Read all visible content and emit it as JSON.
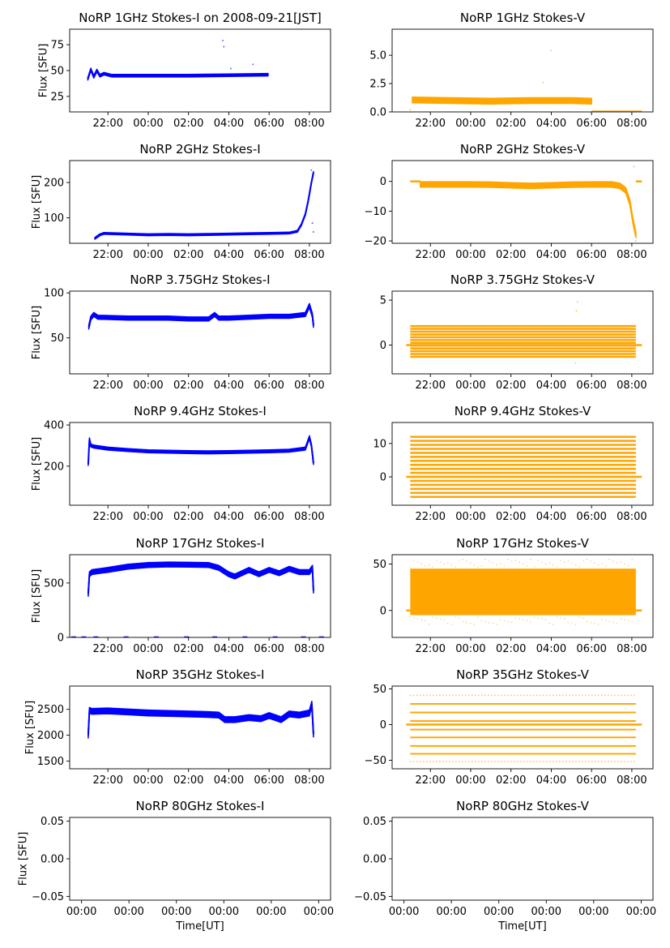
{
  "figure": {
    "xlabel": "Time[UT]"
  },
  "chart_data": [
    {
      "id": "1ghz-i",
      "type": "line",
      "title": "NoRP 1GHz Stokes-I on 2008-09-21[JST]",
      "ylabel": "Flux [SFU]",
      "xlim": [
        -3.9,
        9.05
      ],
      "ylim": [
        10,
        90
      ],
      "xticks": [
        -2,
        0,
        2,
        4,
        6,
        8
      ],
      "xtick_labels": [
        "22:00",
        "00:00",
        "02:00",
        "04:00",
        "06:00",
        "08:00"
      ],
      "yticks": [
        25,
        50,
        75
      ],
      "ytick_labels": [
        "25",
        "50",
        "75"
      ],
      "color": "#0000ff",
      "band_half_width": 1.2,
      "series": [
        {
          "x": [
            -3.0,
            -2.85,
            -2.7,
            -2.55,
            -2.4,
            -2.2,
            -1.8,
            0,
            2,
            4,
            5.95
          ],
          "y": [
            42,
            51,
            44,
            50,
            45,
            47,
            45,
            45,
            45,
            45.5,
            46
          ]
        }
      ],
      "outliers": [
        {
          "x": 3.7,
          "y": 79
        },
        {
          "x": 3.75,
          "y": 73
        },
        {
          "x": 4.1,
          "y": 52
        },
        {
          "x": 5.2,
          "y": 56
        }
      ]
    },
    {
      "id": "1ghz-v",
      "type": "line",
      "title": "NoRP 1GHz Stokes-V",
      "ylabel": "",
      "xlim": [
        -3.9,
        9.05
      ],
      "ylim": [
        0,
        7.3
      ],
      "xticks": [
        -2,
        0,
        2,
        4,
        6,
        8
      ],
      "xtick_labels": [
        "22:00",
        "00:00",
        "02:00",
        "04:00",
        "06:00",
        "08:00"
      ],
      "yticks": [
        0,
        2.5,
        5
      ],
      "ytick_labels": [
        "0.0",
        "2.5",
        "5.0"
      ],
      "color": "#ffa500",
      "band_half_width": 0.25,
      "series": [
        {
          "x": [
            -2.9,
            -1,
            1,
            3,
            5,
            6.0
          ],
          "y": [
            1.05,
            1.0,
            0.95,
            1.0,
            1.0,
            0.95
          ]
        }
      ],
      "flat": {
        "x": [
          6.0,
          8.5
        ],
        "y": 0.03
      },
      "outliers": [
        {
          "x": -3.0,
          "y": 0.2
        },
        {
          "x": 4.0,
          "y": 5.4
        },
        {
          "x": 3.6,
          "y": 2.6
        }
      ]
    },
    {
      "id": "2ghz-i",
      "type": "line",
      "title": "NoRP 2GHz Stokes-I",
      "ylabel": "Flux [SFU]",
      "xlim": [
        -3.9,
        9.05
      ],
      "ylim": [
        28,
        262
      ],
      "xticks": [
        -2,
        0,
        2,
        4,
        6,
        8
      ],
      "xtick_labels": [
        "22:00",
        "00:00",
        "02:00",
        "04:00",
        "06:00",
        "08:00"
      ],
      "yticks": [
        100,
        200
      ],
      "ytick_labels": [
        "100",
        "200"
      ],
      "color": "#0000ff",
      "band_half_width": 2.5,
      "series": [
        {
          "x": [
            -2.65,
            -2.4,
            -2.2,
            -1,
            0,
            1,
            2,
            3,
            4,
            5,
            6,
            7,
            7.4,
            7.6,
            7.8,
            7.95,
            8.1,
            8.2
          ],
          "y": [
            42,
            52,
            56,
            54,
            52,
            53,
            52,
            53,
            54,
            55,
            56,
            57,
            62,
            80,
            110,
            150,
            200,
            228
          ]
        }
      ],
      "outliers": [
        {
          "x": 8.15,
          "y": 85
        },
        {
          "x": 8.2,
          "y": 60
        },
        {
          "x": 8.1,
          "y": 235
        }
      ]
    },
    {
      "id": "2ghz-v",
      "type": "line",
      "title": "NoRP 2GHz Stokes-V",
      "ylabel": "",
      "xlim": [
        -3.9,
        9.05
      ],
      "ylim": [
        -20.8,
        7
      ],
      "xticks": [
        -2,
        0,
        2,
        4,
        6,
        8
      ],
      "xtick_labels": [
        "22:00",
        "00:00",
        "02:00",
        "04:00",
        "06:00",
        "08:00"
      ],
      "yticks": [
        -20,
        -10,
        0
      ],
      "ytick_labels": [
        "−20",
        "−10",
        "0"
      ],
      "color": "#ffa500",
      "band_half_width": 0.9,
      "series": [
        {
          "x": [
            -2.5,
            -1,
            0,
            1,
            2,
            3,
            4,
            5,
            6,
            7,
            7.4,
            7.7,
            7.9,
            8.05,
            8.2
          ],
          "y": [
            -1,
            -1,
            -1,
            -1.1,
            -1.3,
            -1.5,
            -1.3,
            -1.1,
            -1,
            -1,
            -1.5,
            -3,
            -7,
            -13,
            -18
          ]
        }
      ],
      "flat": {
        "x": [
          -3.0,
          -2.5
        ],
        "y": 0
      },
      "flat2": {
        "x": [
          8.2,
          8.5
        ],
        "y": 0
      },
      "outliers": [
        {
          "x": 8.1,
          "y": 5
        },
        {
          "x": 8.2,
          "y": -20
        }
      ]
    },
    {
      "id": "375ghz-i",
      "type": "line",
      "title": "NoRP 3.75GHz Stokes-I",
      "ylabel": "Flux [SFU]",
      "xlim": [
        -3.9,
        9.05
      ],
      "ylim": [
        10,
        102
      ],
      "xticks": [
        -2,
        0,
        2,
        4,
        6,
        8
      ],
      "xtick_labels": [
        "22:00",
        "00:00",
        "02:00",
        "04:00",
        "06:00",
        "08:00"
      ],
      "yticks": [
        50,
        100
      ],
      "ytick_labels": [
        "50",
        "100"
      ],
      "color": "#0000ff",
      "band_half_width": 2.2,
      "series": [
        {
          "x": [
            -2.95,
            -2.85,
            -2.7,
            -2.5,
            -1,
            0,
            1,
            2,
            3,
            3.3,
            3.5,
            4,
            5,
            6,
            7,
            7.8,
            8.0,
            8.15,
            8.2
          ],
          "y": [
            62,
            72,
            76,
            73,
            72,
            72,
            72,
            71,
            71,
            76,
            72,
            72,
            73,
            74,
            74,
            76,
            86,
            75,
            64
          ]
        }
      ]
    },
    {
      "id": "375ghz-v",
      "type": "scatter-bands",
      "title": "NoRP 3.75GHz Stokes-V",
      "ylabel": "",
      "xlim": [
        -3.9,
        9.05
      ],
      "ylim": [
        -3.2,
        6
      ],
      "xticks": [
        -2,
        0,
        2,
        4,
        6,
        8
      ],
      "xtick_labels": [
        "22:00",
        "00:00",
        "02:00",
        "04:00",
        "06:00",
        "08:00"
      ],
      "yticks": [
        0,
        5
      ],
      "ytick_labels": [
        "0",
        "5"
      ],
      "color": "#ffa500",
      "x_range": [
        -3.0,
        8.2
      ],
      "band_range": [
        -1.3,
        2.4
      ],
      "band_step": 0.31,
      "flat": {
        "x": [
          -3.2,
          8.5
        ],
        "y": 0
      },
      "outliers": [
        {
          "x": 5.3,
          "y": 4.8
        },
        {
          "x": 5.25,
          "y": 3.8
        },
        {
          "x": 5.2,
          "y": -2.0
        }
      ]
    },
    {
      "id": "94ghz-i",
      "type": "line",
      "title": "NoRP 9.4GHz Stokes-I",
      "ylabel": "Flux [SFU]",
      "xlim": [
        -3.9,
        9.05
      ],
      "ylim": [
        10,
        412
      ],
      "xticks": [
        -2,
        0,
        2,
        4,
        6,
        8
      ],
      "xtick_labels": [
        "22:00",
        "00:00",
        "02:00",
        "04:00",
        "06:00",
        "08:00"
      ],
      "yticks": [
        200,
        400
      ],
      "ytick_labels": [
        "200",
        "400"
      ],
      "color": "#0000ff",
      "band_half_width": 7,
      "series": [
        {
          "x": [
            -2.98,
            -2.92,
            -2.85,
            -2.7,
            -2,
            -1,
            0,
            1,
            2,
            3,
            4,
            5,
            6,
            7,
            7.8,
            8.0,
            8.1,
            8.2
          ],
          "y": [
            210,
            330,
            300,
            295,
            285,
            278,
            272,
            270,
            268,
            267,
            268,
            270,
            272,
            275,
            285,
            340,
            300,
            215
          ]
        }
      ]
    },
    {
      "id": "94ghz-v",
      "type": "scatter-bands",
      "title": "NoRP 9.4GHz Stokes-V",
      "ylabel": "",
      "xlim": [
        -3.9,
        9.05
      ],
      "ylim": [
        -8.5,
        16.3
      ],
      "xticks": [
        -2,
        0,
        2,
        4,
        6,
        8
      ],
      "xtick_labels": [
        "22:00",
        "00:00",
        "02:00",
        "04:00",
        "06:00",
        "08:00"
      ],
      "yticks": [
        0,
        10
      ],
      "ytick_labels": [
        "0",
        "10"
      ],
      "color": "#ffa500",
      "x_range": [
        -3.0,
        8.2
      ],
      "band_range": [
        -6,
        12
      ],
      "band_step": 1.2,
      "flat": {
        "x": [
          -3.2,
          8.5
        ],
        "y": 0
      }
    },
    {
      "id": "17ghz-i",
      "type": "line",
      "title": "NoRP 17GHz Stokes-I",
      "ylabel": "Flux [SFU]",
      "xlim": [
        -3.9,
        9.05
      ],
      "ylim": [
        0,
        760
      ],
      "xticks": [
        -2,
        0,
        2,
        4,
        6,
        8
      ],
      "xtick_labels": [
        "22:00",
        "00:00",
        "02:00",
        "04:00",
        "06:00",
        "08:00"
      ],
      "yticks": [
        0,
        500
      ],
      "ytick_labels": [
        "0",
        "500"
      ],
      "color": "#0000ff",
      "band_half_width": 22,
      "series": [
        {
          "x": [
            -2.98,
            -2.92,
            -2.8,
            -2,
            -1,
            0,
            1,
            2,
            3,
            3.5,
            4,
            4.3,
            5,
            5.5,
            6,
            6.5,
            7,
            7.5,
            8,
            8.15,
            8.2
          ],
          "y": [
            400,
            580,
            600,
            620,
            650,
            665,
            670,
            668,
            665,
            640,
            580,
            560,
            620,
            580,
            620,
            590,
            630,
            600,
            600,
            640,
            430
          ]
        }
      ],
      "flat_dashes": {
        "y": 0,
        "x": [
          -3.7,
          -3.2,
          -2.6,
          -1.1,
          0.4,
          1.9,
          3.3,
          4.8,
          6.3,
          7.7,
          8.6
        ]
      }
    },
    {
      "id": "17ghz-v",
      "type": "scatter-bands",
      "title": "NoRP 17GHz Stokes-V",
      "ylabel": "",
      "xlim": [
        -3.9,
        9.05
      ],
      "ylim": [
        -29,
        60
      ],
      "xticks": [
        -2,
        0,
        2,
        4,
        6,
        8
      ],
      "xtick_labels": [
        "22:00",
        "00:00",
        "02:00",
        "04:00",
        "06:00",
        "08:00"
      ],
      "yticks": [
        0,
        50
      ],
      "ytick_labels": [
        "0",
        "50"
      ],
      "color": "#ffa500",
      "x_range": [
        -3.0,
        8.2
      ],
      "solid_range": [
        -5,
        45
      ],
      "flat": {
        "x": [
          -3.2,
          8.5
        ],
        "y": 0
      }
    },
    {
      "id": "35ghz-i",
      "type": "line",
      "title": "NoRP 35GHz Stokes-I",
      "ylabel": "Flux [SFU]",
      "xlim": [
        -3.9,
        9.05
      ],
      "ylim": [
        1350,
        2950
      ],
      "xticks": [
        -2,
        0,
        2,
        4,
        6,
        8
      ],
      "xtick_labels": [
        "22:00",
        "00:00",
        "02:00",
        "04:00",
        "06:00",
        "08:00"
      ],
      "yticks": [
        1500,
        2000,
        2500
      ],
      "ytick_labels": [
        "1500",
        "2000",
        "2500"
      ],
      "color": "#0000ff",
      "band_half_width": 55,
      "series": [
        {
          "x": [
            -2.98,
            -2.92,
            -2.8,
            -2,
            -1,
            0,
            1,
            2,
            3,
            3.5,
            3.8,
            4.3,
            5,
            5.6,
            6,
            6.6,
            7,
            7.5,
            8,
            8.12,
            8.2
          ],
          "y": [
            2000,
            2480,
            2460,
            2470,
            2450,
            2430,
            2420,
            2410,
            2400,
            2390,
            2300,
            2300,
            2340,
            2320,
            2380,
            2300,
            2410,
            2390,
            2430,
            2600,
            2020
          ]
        }
      ]
    },
    {
      "id": "35ghz-v",
      "type": "scatter-bands",
      "title": "NoRP 35GHz Stokes-V",
      "ylabel": "",
      "xlim": [
        -3.9,
        9.05
      ],
      "ylim": [
        -62,
        54
      ],
      "xticks": [
        -2,
        0,
        2,
        4,
        6,
        8
      ],
      "xtick_labels": [
        "22:00",
        "00:00",
        "02:00",
        "04:00",
        "06:00",
        "08:00"
      ],
      "yticks": [
        -50,
        0,
        50
      ],
      "ytick_labels": [
        "−50",
        "0",
        "50"
      ],
      "color": "#ffa500",
      "x_range": [
        -3.0,
        8.2
      ],
      "band_list": [
        -52,
        -41,
        -30,
        -18,
        -7,
        5,
        17,
        29,
        41
      ],
      "band_height": 2.2,
      "flat": {
        "x": [
          -3.2,
          8.5
        ],
        "y": 0
      },
      "sparse_bands": [
        -52,
        41
      ]
    },
    {
      "id": "80ghz-i",
      "type": "line",
      "title": "NoRP 80GHz Stokes-I",
      "ylabel": "Flux [SFU]",
      "xlim": [
        -0.055,
        0.055
      ],
      "ylim": [
        -0.055,
        0.055
      ],
      "xticks": [
        -0.05,
        -0.03,
        -0.01,
        0.01,
        0.03,
        0.05
      ],
      "xtick_labels": [
        "00:00",
        "00:00",
        "00:00",
        "00:00",
        "00:00",
        "00:00"
      ],
      "yticks": [
        -0.05,
        0,
        0.05
      ],
      "ytick_labels": [
        "−0.05",
        "0.00",
        "0.05"
      ],
      "series": []
    },
    {
      "id": "80ghz-v",
      "type": "line",
      "title": "NoRP 80GHz Stokes-V",
      "ylabel": "",
      "xlim": [
        -0.055,
        0.055
      ],
      "ylim": [
        -0.055,
        0.055
      ],
      "xticks": [
        -0.05,
        -0.03,
        -0.01,
        0.01,
        0.03,
        0.05
      ],
      "xtick_labels": [
        "00:00",
        "00:00",
        "00:00",
        "00:00",
        "00:00",
        "00:00"
      ],
      "yticks": [
        -0.05,
        0,
        0.05
      ],
      "ytick_labels": [
        "−0.05",
        "0.00",
        "0.05"
      ],
      "series": []
    }
  ]
}
